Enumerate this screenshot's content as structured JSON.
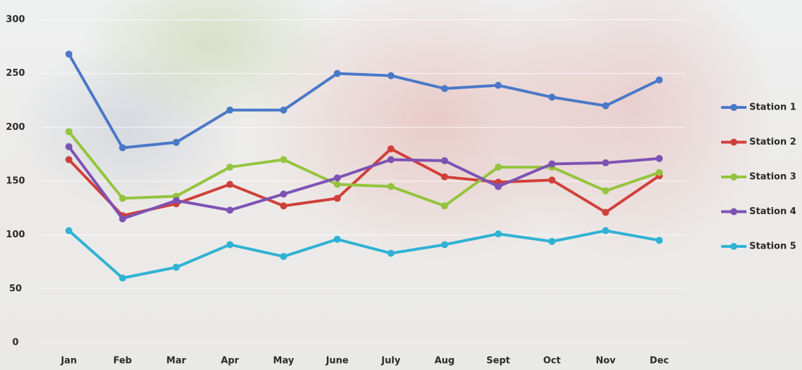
{
  "chart_data": {
    "type": "line",
    "categories": [
      "Jan",
      "Feb",
      "Mar",
      "Apr",
      "May",
      "June",
      "July",
      "Aug",
      "Sept",
      "Oct",
      "Nov",
      "Dec"
    ],
    "series": [
      {
        "name": "Station 1",
        "color": "#4a78c8",
        "values": [
          268,
          181,
          186,
          216,
          216,
          250,
          248,
          236,
          239,
          228,
          220,
          244
        ]
      },
      {
        "name": "Station 2",
        "color": "#d0403a",
        "values": [
          170,
          118,
          129,
          147,
          127,
          134,
          180,
          154,
          149,
          151,
          121,
          155
        ]
      },
      {
        "name": "Station 3",
        "color": "#94c43e",
        "values": [
          196,
          134,
          136,
          163,
          170,
          147,
          145,
          127,
          163,
          163,
          141,
          158
        ]
      },
      {
        "name": "Station 4",
        "color": "#7d52b4",
        "values": [
          182,
          115,
          132,
          123,
          138,
          153,
          170,
          169,
          145,
          166,
          167,
          171
        ]
      },
      {
        "name": "Station 5",
        "color": "#30b2d4",
        "values": [
          104,
          60,
          70,
          91,
          80,
          96,
          83,
          91,
          101,
          94,
          104,
          95
        ]
      }
    ],
    "ylim": [
      0,
      300
    ],
    "yticks": [
      0,
      50,
      100,
      150,
      200,
      250,
      300
    ],
    "grid": true,
    "legend": "right"
  }
}
